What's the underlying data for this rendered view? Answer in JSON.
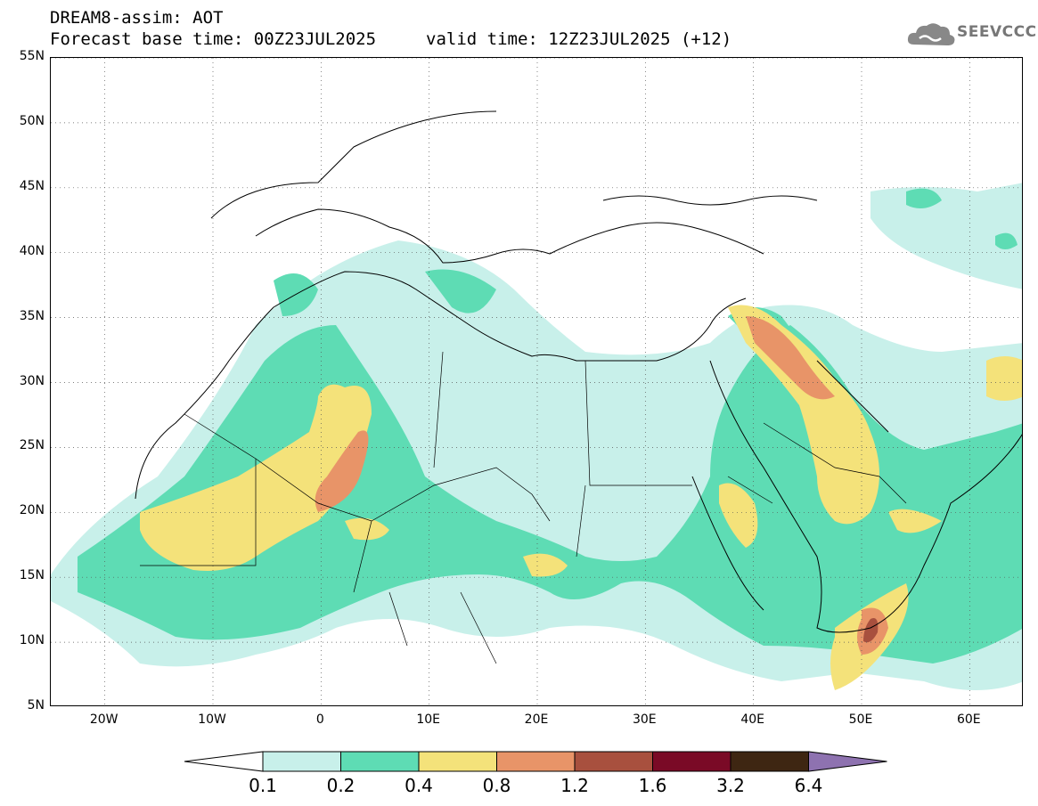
{
  "header": {
    "line1": "DREAM8-assim: AOT",
    "line2a": "Forecast base time: 00Z23JUL2025",
    "line2b": "valid time: 12Z23JUL2025 (+12)"
  },
  "logo": {
    "text": "SEEVCCC",
    "icon": "cloud-icon"
  },
  "map": {
    "lat_labels": [
      "55N",
      "50N",
      "45N",
      "40N",
      "35N",
      "30N",
      "25N",
      "20N",
      "15N",
      "10N",
      "5N"
    ],
    "lon_labels": [
      "20W",
      "10W",
      "0",
      "10E",
      "20E",
      "30E",
      "40E",
      "50E",
      "60E"
    ],
    "lat_range": [
      5,
      55
    ],
    "lon_range": [
      -25,
      65
    ],
    "grid": "dotted",
    "variable": "AOT"
  },
  "colorbar": {
    "labels": [
      "0.1",
      "0.2",
      "0.4",
      "0.8",
      "1.2",
      "1.6",
      "3.2",
      "6.4"
    ],
    "colors": [
      "#ffffff",
      "#c8f0ea",
      "#5edcb4",
      "#f4e27a",
      "#e89468",
      "#a8503e",
      "#7a0a26",
      "#3e2612",
      "#8e72b0"
    ]
  },
  "colors": {
    "aot_0_1": "#c8f0ea",
    "aot_0_2": "#5edcb4",
    "aot_0_4": "#f4e27a",
    "aot_0_8": "#e89468",
    "aot_1_2": "#a8503e"
  }
}
